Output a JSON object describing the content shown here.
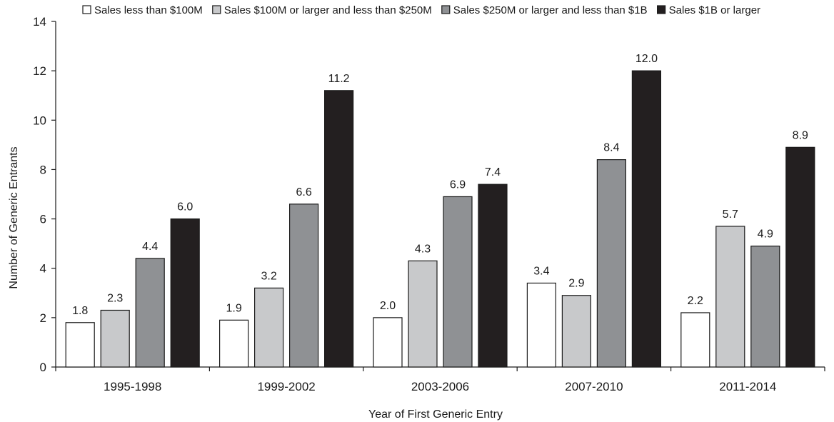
{
  "chart_data": {
    "type": "bar",
    "xlabel": "Year of First Generic Entry",
    "ylabel": "Number of Generic Entrants",
    "ylim": [
      0,
      14
    ],
    "yticks": [
      0,
      2,
      4,
      6,
      8,
      10,
      12,
      14
    ],
    "grid": false,
    "legend_position": "top",
    "categories": [
      "1995-1998",
      "1999-2002",
      "2003-2006",
      "2007-2010",
      "2011-2014"
    ],
    "series": [
      {
        "name": "Sales less than $100M",
        "color": "#ffffff",
        "values": [
          1.8,
          1.9,
          2.0,
          3.4,
          2.2
        ]
      },
      {
        "name": "Sales $100M or larger and less than $250M",
        "color": "#c8c9cb",
        "values": [
          2.3,
          3.2,
          4.3,
          2.9,
          5.7
        ]
      },
      {
        "name": "Sales $250M or larger and less than $1B",
        "color": "#8f9194",
        "values": [
          4.4,
          6.6,
          6.9,
          8.4,
          4.9
        ]
      },
      {
        "name": "Sales $1B or larger",
        "color": "#231f20",
        "values": [
          6.0,
          11.2,
          7.4,
          12.0,
          8.9
        ]
      }
    ]
  }
}
